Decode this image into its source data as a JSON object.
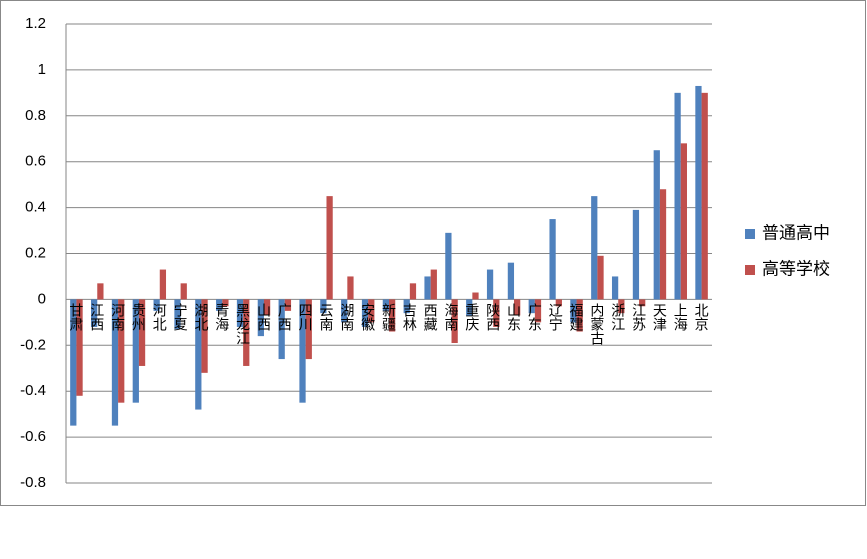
{
  "chart_data": {
    "type": "bar",
    "categories": [
      "甘肃",
      "江西",
      "河南",
      "贵州",
      "河北",
      "宁夏",
      "湖北",
      "青海",
      "黑龙江",
      "山西",
      "广西",
      "四川",
      "云南",
      "湖南",
      "安徽",
      "新疆",
      "吉林",
      "西藏",
      "海南",
      "重庆",
      "陕西",
      "山东",
      "广东",
      "辽宁",
      "福建",
      "内蒙古",
      "浙江",
      "江苏",
      "天津",
      "上海",
      "北京"
    ],
    "series": [
      {
        "name": "普通高中",
        "color": "#4f81bd",
        "values": [
          -0.55,
          -0.12,
          -0.55,
          -0.45,
          -0.05,
          -0.13,
          -0.48,
          -0.05,
          -0.12,
          -0.16,
          -0.26,
          -0.45,
          -0.06,
          -0.1,
          -0.12,
          -0.05,
          -0.06,
          0.1,
          0.29,
          -0.07,
          0.13,
          0.16,
          -0.06,
          0.35,
          -0.1,
          0.45,
          0.1,
          0.39,
          0.65,
          0.9,
          0.93
        ]
      },
      {
        "name": "高等学校",
        "color": "#c0504d",
        "values": [
          -0.42,
          0.07,
          -0.45,
          -0.29,
          0.13,
          0.07,
          -0.32,
          -0.03,
          -0.29,
          -0.07,
          -0.05,
          -0.26,
          0.45,
          0.1,
          -0.1,
          -0.14,
          0.07,
          0.13,
          -0.19,
          0.03,
          -0.12,
          -0.07,
          -0.1,
          -0.03,
          -0.14,
          0.19,
          -0.06,
          -0.03,
          0.48,
          0.68,
          0.9
        ]
      }
    ],
    "ylim": [
      -0.8,
      1.2
    ],
    "yticks": [
      1.2,
      1,
      0.8,
      0.6,
      0.4,
      0.2,
      0,
      -0.2,
      -0.4,
      -0.6,
      -0.8
    ],
    "grid": true,
    "legend": "right"
  }
}
